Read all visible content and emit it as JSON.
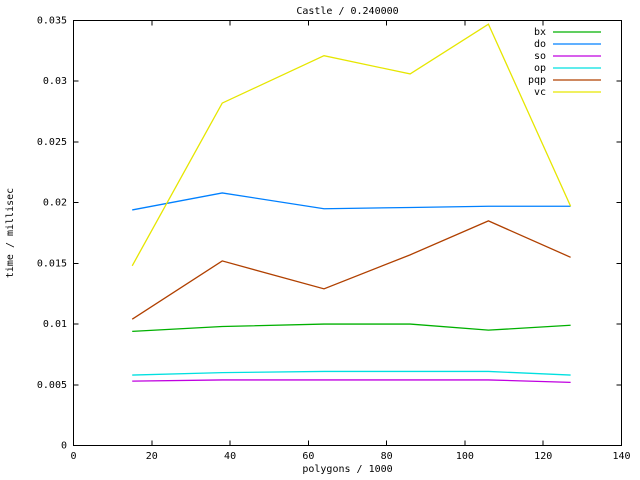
{
  "window": {
    "background": "#ffffff",
    "text_color": "#000000",
    "axis_color": "#000000"
  },
  "chart_data": {
    "type": "line",
    "title": "Castle / 0.240000",
    "xlabel": "polygons / 1000",
    "ylabel": "time / millisec",
    "xlim": [
      0,
      140
    ],
    "ylim": [
      0,
      0.035
    ],
    "grid": false,
    "legend_position": "top-right-inside",
    "xticks": [
      {
        "value": 0,
        "label": "0"
      },
      {
        "value": 20,
        "label": "20"
      },
      {
        "value": 40,
        "label": "40"
      },
      {
        "value": 60,
        "label": "60"
      },
      {
        "value": 80,
        "label": "80"
      },
      {
        "value": 100,
        "label": "100"
      },
      {
        "value": 120,
        "label": "120"
      },
      {
        "value": 140,
        "label": "140"
      }
    ],
    "yticks": [
      {
        "value": 0,
        "label": "0"
      },
      {
        "value": 0.005,
        "label": "0.005"
      },
      {
        "value": 0.01,
        "label": "0.01"
      },
      {
        "value": 0.015,
        "label": "0.015"
      },
      {
        "value": 0.02,
        "label": "0.02"
      },
      {
        "value": 0.025,
        "label": "0.025"
      },
      {
        "value": 0.03,
        "label": "0.03"
      },
      {
        "value": 0.035,
        "label": "0.035"
      }
    ],
    "x": [
      15,
      38,
      64,
      86,
      106,
      127
    ],
    "series": [
      {
        "name": "bx",
        "color": "#00b000",
        "values": [
          0.0094,
          0.0098,
          0.01,
          0.01,
          0.0095,
          0.0099
        ]
      },
      {
        "name": "do",
        "color": "#0080ff",
        "values": [
          0.0194,
          0.0208,
          0.0195,
          0.0196,
          0.0197,
          0.0197
        ]
      },
      {
        "name": "so",
        "color": "#c000e0",
        "values": [
          0.0053,
          0.0054,
          0.0054,
          0.0054,
          0.0054,
          0.0052
        ]
      },
      {
        "name": "op",
        "color": "#00e0e0",
        "values": [
          0.0058,
          0.006,
          0.0061,
          0.0061,
          0.0061,
          0.0058
        ]
      },
      {
        "name": "pqp",
        "color": "#b04000",
        "values": [
          0.0104,
          0.0152,
          0.0129,
          0.0157,
          0.0185,
          0.0155
        ]
      },
      {
        "name": "vc",
        "color": "#e6e600",
        "values": [
          0.0148,
          0.0282,
          0.0321,
          0.0306,
          0.0347,
          0.0197
        ]
      }
    ]
  }
}
